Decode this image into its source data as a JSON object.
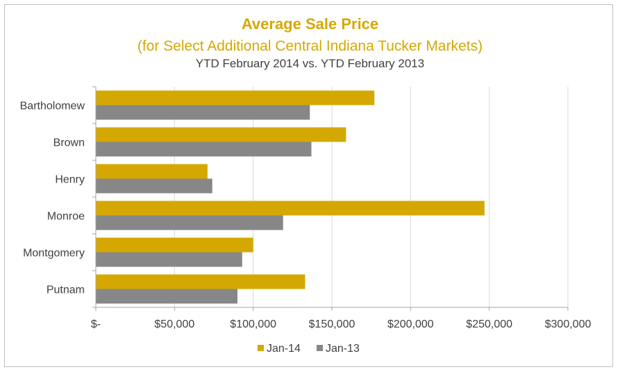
{
  "chart_data": {
    "type": "bar",
    "orientation": "horizontal",
    "title": "Average Sale Price",
    "subtitle": "(for Select Additional Central Indiana Tucker Markets)",
    "subtitle2": "YTD February 2014 vs. YTD February 2013",
    "categories": [
      "Bartholomew",
      "Brown",
      "Henry",
      "Monroe",
      "Montgomery",
      "Putnam"
    ],
    "series": [
      {
        "name": "Jan-14",
        "color": "#d5a800",
        "values": [
          177000,
          159000,
          71000,
          247000,
          100000,
          133000
        ]
      },
      {
        "name": "Jan-13",
        "color": "#878787",
        "values": [
          136000,
          137000,
          74000,
          119000,
          93000,
          90000
        ]
      }
    ],
    "xlim": [
      0,
      300000
    ],
    "x_ticks": [
      0,
      50000,
      100000,
      150000,
      200000,
      250000,
      300000
    ],
    "x_tick_labels": [
      "$-",
      "$50,000",
      "$100,000",
      "$150,000",
      "$200,000",
      "$250,000",
      "$300,000"
    ],
    "grid": true,
    "legend_position": "bottom"
  }
}
